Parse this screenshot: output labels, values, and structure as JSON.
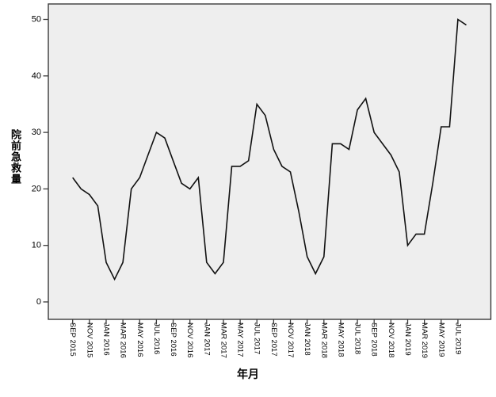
{
  "figure": {
    "y_axis_title": "院前急救量",
    "x_axis_title": "年月"
  },
  "chart_data": {
    "type": "line",
    "title": "",
    "xlabel": "年月",
    "ylabel": "院前急救量",
    "x": [
      "SEP 2015",
      "OCT 2015",
      "NOV 2015",
      "DEC 2015",
      "JAN 2016",
      "FEB 2016",
      "MAR 2016",
      "APR 2016",
      "MAY 2016",
      "JUN 2016",
      "JUL 2016",
      "AUG 2016",
      "SEP 2016",
      "OCT 2016",
      "NOV 2016",
      "DEC 2016",
      "JAN 2017",
      "FEB 2017",
      "MAR 2017",
      "APR 2017",
      "MAY 2017",
      "JUN 2017",
      "JUL 2017",
      "AUG 2017",
      "SEP 2017",
      "OCT 2017",
      "NOV 2017",
      "DEC 2017",
      "JAN 2018",
      "FEB 2018",
      "MAR 2018",
      "APR 2018",
      "MAY 2018",
      "JUN 2018",
      "JUL 2018",
      "AUG 2018",
      "SEP 2018",
      "OCT 2018",
      "NOV 2018",
      "DEC 2018",
      "JAN 2019",
      "FEB 2019",
      "MAR 2019",
      "APR 2019",
      "MAY 2019",
      "JUN 2019",
      "JUL 2019",
      "AUG 2019"
    ],
    "values": [
      22,
      20,
      19,
      17,
      7,
      4,
      7,
      20,
      22,
      26,
      30,
      29,
      25,
      21,
      20,
      22,
      7,
      5,
      7,
      24,
      24,
      25,
      35,
      33,
      27,
      24,
      23,
      16,
      8,
      5,
      8,
      28,
      28,
      27,
      34,
      36,
      30,
      28,
      26,
      23,
      10,
      12,
      12,
      21,
      31,
      31,
      50,
      49
    ],
    "x_tick_labels": [
      "SEP 2015",
      "NOV 2015",
      "JAN 2016",
      "MAR 2016",
      "MAY 2016",
      "JUL 2016",
      "SEP 2016",
      "NOV 2016",
      "JAN 2017",
      "MAR 2017",
      "MAY 2017",
      "JUL 2017",
      "SEP 2017",
      "NOV 2017",
      "JAN 2018",
      "MAR 2018",
      "MAY 2018",
      "JUL 2018",
      "SEP 2018",
      "NOV 2018",
      "JAN 2019",
      "MAR 2019",
      "MAY 2019",
      "JUL 2019"
    ],
    "x_tick_every": 2,
    "yticks": [
      0,
      10,
      20,
      30,
      40,
      50
    ],
    "ylim": [
      0,
      52.7
    ],
    "grid": false,
    "legend": "none",
    "line_color": "#111111",
    "plot_bg": "#eeeeee",
    "frame_color": "#3a3a3a",
    "text_color": "#000000"
  }
}
